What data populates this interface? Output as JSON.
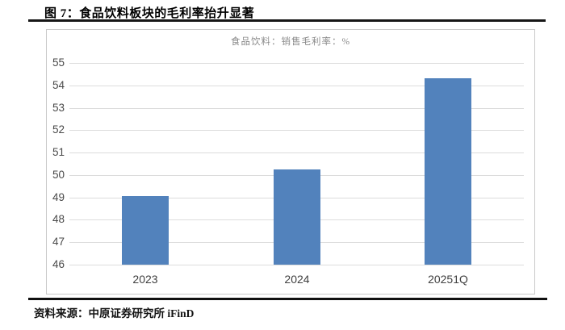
{
  "figure": {
    "title": "图 7：食品饮料板块的毛利率抬升显著",
    "source": "资料来源：中原证券研究所 iFinD"
  },
  "chart_data": {
    "type": "bar",
    "title": "食品饮料：销售毛利率：%",
    "categories": [
      "2023",
      "2024",
      "20251Q"
    ],
    "values": [
      49.05,
      50.25,
      54.3
    ],
    "xlabel": "",
    "ylabel": "",
    "ylim": [
      46,
      55
    ],
    "yticks": [
      46,
      47,
      48,
      49,
      50,
      51,
      52,
      53,
      54,
      55
    ],
    "grid": true,
    "legend_position": "top-center",
    "bar_color": "#5282bc",
    "gridline_color": "#dcdcdc",
    "frame_border_color": "#c9c9c9"
  }
}
